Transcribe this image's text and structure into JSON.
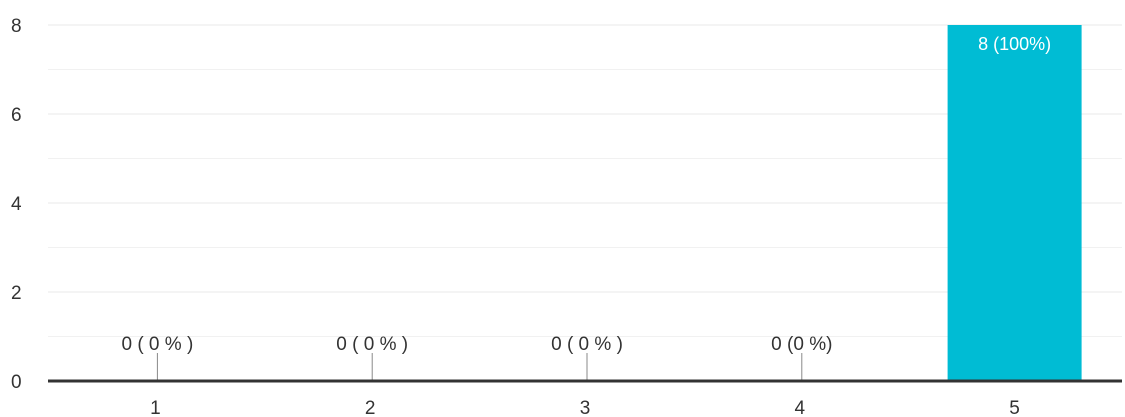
{
  "chart_data": {
    "type": "bar",
    "categories": [
      "1",
      "2",
      "3",
      "4",
      "5"
    ],
    "values": [
      0,
      0,
      0,
      0,
      8
    ],
    "data_labels": [
      "0 ( 0 % )",
      "0 ( 0 % )",
      "0 ( 0 % )",
      "0 (0 %)",
      "8 (100%)"
    ],
    "ylim": [
      0,
      8
    ],
    "y_ticks": [
      0,
      2,
      4,
      6,
      8
    ],
    "grid": true,
    "colors": {
      "bar": "#00BCD4",
      "grid": "#e8e8e8",
      "axis": "#333333",
      "text": "#333333",
      "label_inside": "#ffffff"
    }
  }
}
